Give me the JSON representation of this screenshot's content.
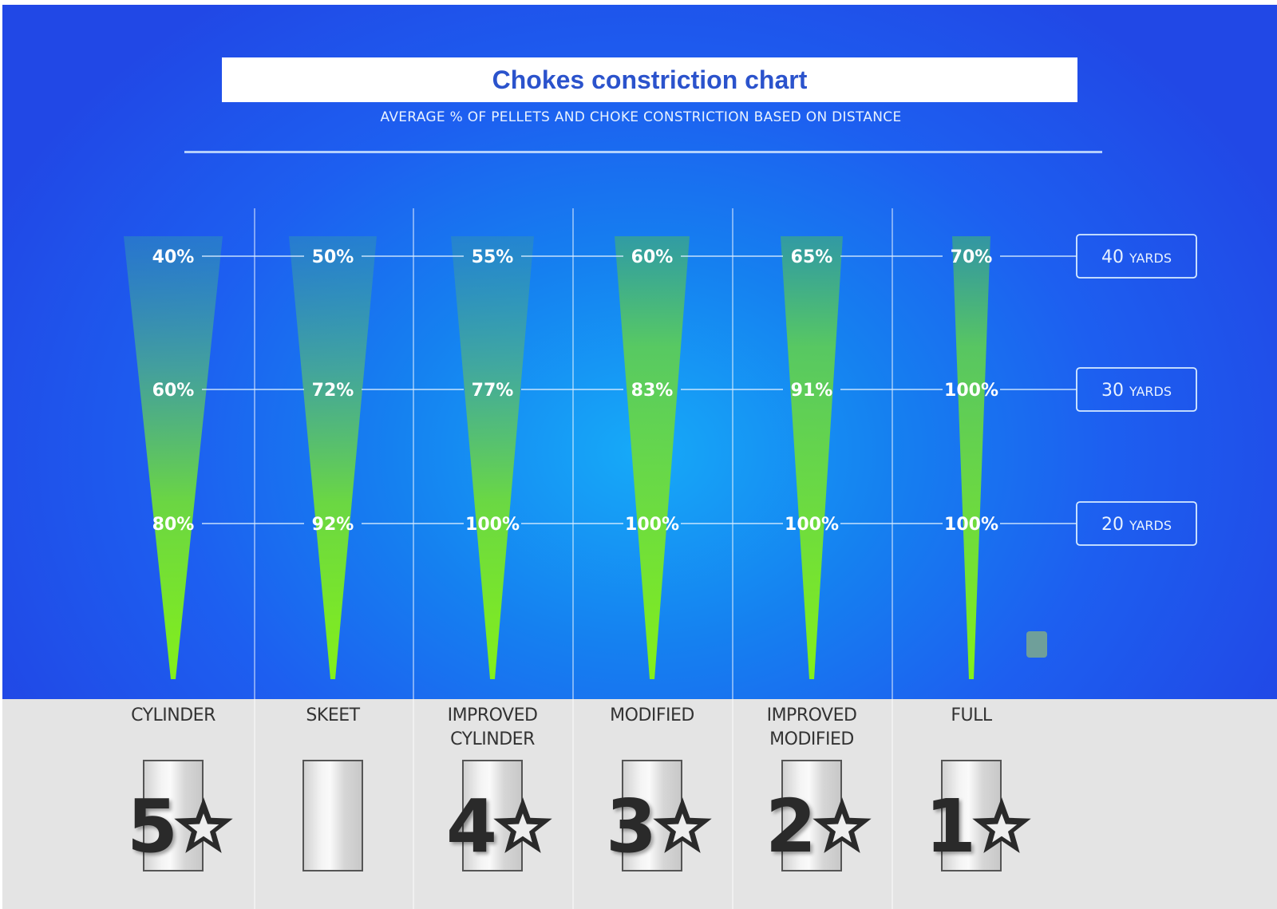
{
  "title": "Chokes constriction chart",
  "subtitle": "AVERAGE % OF PELLETS AND CHOKE CONSTRICTION BASED ON DISTANCE",
  "distances": [
    {
      "num": "40",
      "unit": "YARDS"
    },
    {
      "num": "30",
      "unit": "YARDS"
    },
    {
      "num": "20",
      "unit": "YARDS"
    }
  ],
  "chokes": [
    {
      "name_lines": [
        "CYLINDER"
      ],
      "rating": "5",
      "labels": [
        "40%",
        "60%",
        "80%"
      ]
    },
    {
      "name_lines": [
        "SKEET"
      ],
      "rating": "",
      "labels": [
        "50%",
        "72%",
        "92%"
      ]
    },
    {
      "name_lines": [
        "IMPROVED",
        "CYLINDER"
      ],
      "rating": "4",
      "labels": [
        "55%",
        "77%",
        "100%"
      ]
    },
    {
      "name_lines": [
        "MODIFIED"
      ],
      "rating": "3",
      "labels": [
        "60%",
        "83%",
        "100%"
      ]
    },
    {
      "name_lines": [
        "IMPROVED",
        "MODIFIED"
      ],
      "rating": "2",
      "labels": [
        "65%",
        "91%",
        "100%"
      ]
    },
    {
      "name_lines": [
        "FULL"
      ],
      "rating": "1",
      "labels": [
        "70%",
        "100%",
        "100%"
      ]
    }
  ],
  "colors": {
    "background_top": "#2148e6",
    "background_center": "#16aaf8",
    "cone_tip": "#7ef21e",
    "cone_top": "#2c8fb0",
    "title_text": "#2b53cc",
    "panel": "#e4e4e4"
  },
  "icons": [
    "star-icon"
  ],
  "chart_data": {
    "type": "table",
    "title": "Chokes constriction chart",
    "subtitle": "AVERAGE % OF PELLETS AND CHOKE CONSTRICTION BASED ON DISTANCE",
    "categories": [
      "CYLINDER",
      "SKEET",
      "IMPROVED CYLINDER",
      "MODIFIED",
      "IMPROVED MODIFIED",
      "FULL"
    ],
    "series": [
      {
        "name": "40 YARDS",
        "values": [
          40,
          50,
          55,
          60,
          65,
          70
        ]
      },
      {
        "name": "30 YARDS",
        "values": [
          60,
          72,
          77,
          83,
          91,
          100
        ]
      },
      {
        "name": "20 YARDS",
        "values": [
          80,
          92,
          100,
          100,
          100,
          100
        ]
      }
    ],
    "ratings": [
      5,
      null,
      4,
      3,
      2,
      1
    ],
    "ylim": [
      0,
      100
    ],
    "grid": false
  }
}
